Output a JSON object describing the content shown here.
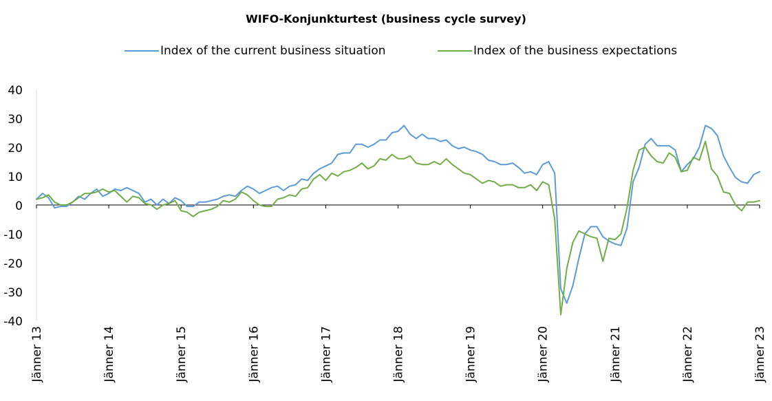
{
  "chart_data": {
    "type": "line",
    "title": "WIFO-Konjunkturtest (business cycle survey)",
    "xlabel": "",
    "ylabel": "",
    "ylim": [
      -40,
      40
    ],
    "yticks": [
      40,
      30,
      20,
      10,
      0,
      -10,
      -20,
      -30,
      -40
    ],
    "xtick_labels": [
      "Jänner 13",
      "Jänner 14",
      "Jänner 15",
      "Jänner 16",
      "Jänner 17",
      "Jänner 18",
      "Jänner 19",
      "Jänner 20",
      "Jänner 21",
      "Jänner 22",
      "Jänner 23"
    ],
    "x_start": "2013-01",
    "frequency": "monthly",
    "grid": "horizontal zero line only",
    "legend": "top-center",
    "series": [
      {
        "name": "Index of the current business situation",
        "color": "#5b9bd5",
        "values": [
          2,
          4,
          2.5,
          -1,
          -0.5,
          -0.5,
          1,
          3,
          2,
          4,
          5.5,
          3,
          4,
          5.5,
          5,
          6,
          5,
          4,
          1,
          2,
          0,
          2,
          0.5,
          2.5,
          1.5,
          -0.5,
          -0.5,
          1,
          1,
          1.5,
          2,
          3,
          3.5,
          3,
          5,
          6.5,
          5.5,
          4,
          5,
          6,
          6.5,
          5,
          6.5,
          7,
          9,
          8.5,
          11,
          12.5,
          13.5,
          14.5,
          17.5,
          18,
          18,
          21,
          21,
          20,
          21,
          22.5,
          22.5,
          25,
          25.5,
          27.5,
          24.5,
          23,
          24.5,
          23,
          23,
          22,
          22.5,
          20.5,
          19.5,
          20,
          19,
          18.5,
          17.5,
          15.5,
          15,
          14,
          14,
          14.5,
          13,
          11,
          11.5,
          10.5,
          14,
          15,
          11,
          -29,
          -34,
          -28,
          -18.5,
          -10,
          -7.5,
          -7.5,
          -11,
          -12.5,
          -13.5,
          -14,
          -8,
          8,
          13,
          21,
          23,
          20.5,
          20.5,
          20.5,
          19,
          11.5,
          14,
          16,
          20,
          27.5,
          26.5,
          24,
          17,
          13,
          9.5,
          8,
          7.5,
          10.5,
          11.5
        ]
      },
      {
        "name": "Index of the business expectations",
        "color": "#70ad47",
        "values": [
          2,
          2.5,
          3.5,
          1,
          0,
          0,
          1,
          2.5,
          4,
          4,
          4.5,
          5.5,
          4.5,
          5,
          3,
          1,
          3,
          2.5,
          0.5,
          0,
          -1.5,
          0,
          0.5,
          1.5,
          -2,
          -2.5,
          -4,
          -2.5,
          -2,
          -1.5,
          -0.5,
          1.5,
          1,
          2,
          4.5,
          3.5,
          1.5,
          0,
          -0.5,
          -0.5,
          2,
          2.5,
          3.5,
          3,
          5.5,
          6,
          9,
          10.5,
          8.5,
          11,
          10,
          11.5,
          12,
          13,
          14.5,
          12.5,
          13.5,
          16,
          15.5,
          17.5,
          16,
          16,
          17,
          14.5,
          14,
          14,
          15,
          14,
          16,
          14,
          12.5,
          11,
          10.5,
          9,
          7.5,
          8.5,
          8,
          6.5,
          7,
          7,
          6,
          6,
          7,
          5,
          8,
          7,
          -5,
          -38,
          -22,
          -13,
          -9,
          -10,
          -11,
          -11.5,
          -19.5,
          -11.5,
          -12,
          -10,
          -1,
          12,
          19,
          20,
          17,
          15,
          14.5,
          18,
          16.5,
          11.5,
          12,
          16.5,
          15.5,
          22,
          12.5,
          10,
          4.5,
          4,
          0,
          -2,
          1,
          1,
          1.5
        ]
      }
    ]
  }
}
